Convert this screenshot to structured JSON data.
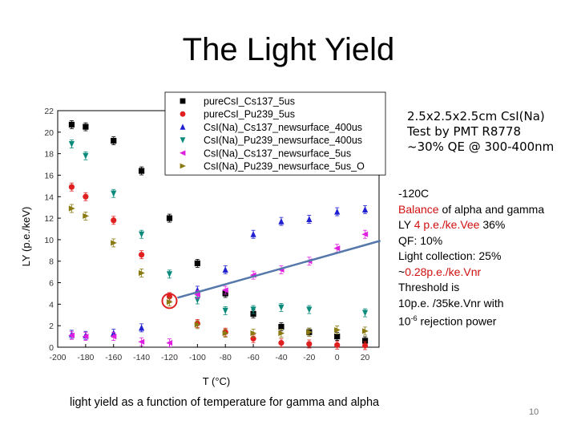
{
  "slide": {
    "title": "The Light Yield",
    "caption": "light yield as a function of temperature for gamma and alpha",
    "page_number": "10"
  },
  "info_box": {
    "lines": [
      "2.5x2.5x2.5cm CsI(Na)",
      "Test by PMT R8778",
      "~30% QE @ 300-400nm"
    ]
  },
  "notes": {
    "temp": "-120C",
    "balance_red": "Balance",
    "balance_rest": " of alpha and gamma",
    "ly_prefix": "LY ",
    "ly_red": "4 p.e./ke.Vee",
    "ly_suffix": " 36%",
    "qf": "QF: 10%",
    "light_collection": "Light collection: 25%",
    "tilde": "~",
    "pe_red": "0.28p.e./ke.Vnr",
    "threshold": "Threshold is",
    "threshold_value": "10p.e. /35ke.Vnr  with",
    "rejection_base": "10",
    "rejection_exp": "-6",
    "rejection_rest": " rejection power"
  },
  "chart_data": {
    "type": "scatter",
    "xlabel": "T (°C)",
    "ylabel": "LY (p.e./keV)",
    "xlim": [
      -200,
      30
    ],
    "ylim": [
      0,
      22
    ],
    "xticks": [
      -200,
      -180,
      -160,
      -140,
      -120,
      -100,
      -80,
      -60,
      -40,
      -20,
      0,
      20
    ],
    "yticks": [
      0,
      2,
      4,
      6,
      8,
      10,
      12,
      14,
      16,
      18,
      20,
      22
    ],
    "legend_position": "top-right",
    "highlight": {
      "x": -120,
      "y": 4.3
    },
    "arrow": {
      "from": {
        "x": -120,
        "y": 4.6
      },
      "to": {
        "x": 8,
        "y": 9.9
      }
    },
    "series": [
      {
        "name": "pureCsI_Cs137_5us",
        "color": "#000000",
        "marker": "square",
        "points": [
          [
            -190,
            20.7
          ],
          [
            -180,
            20.5
          ],
          [
            -160,
            19.2
          ],
          [
            -140,
            16.4
          ],
          [
            -120,
            12.0
          ],
          [
            -100,
            7.8
          ],
          [
            -80,
            5.0
          ],
          [
            -60,
            3.1
          ],
          [
            -40,
            1.9
          ],
          [
            -20,
            1.4
          ],
          [
            0,
            1.0
          ],
          [
            20,
            0.6
          ]
        ]
      },
      {
        "name": "pureCsI_Pu239_5us",
        "color": "#e02020",
        "marker": "circle",
        "points": [
          [
            -190,
            14.9
          ],
          [
            -180,
            14.0
          ],
          [
            -160,
            11.8
          ],
          [
            -140,
            8.6
          ],
          [
            -120,
            4.7
          ],
          [
            -100,
            2.2
          ],
          [
            -80,
            1.4
          ],
          [
            -60,
            0.8
          ],
          [
            -40,
            0.4
          ],
          [
            -20,
            0.3
          ],
          [
            0,
            0.2
          ],
          [
            20,
            0.15
          ]
        ]
      },
      {
        "name": "CsI(Na)_Cs137_newsurface_400us",
        "color": "#2020d0",
        "marker": "triangle-up",
        "points": [
          [
            -190,
            1.2
          ],
          [
            -180,
            1.1
          ],
          [
            -160,
            1.3
          ],
          [
            -140,
            1.8
          ],
          [
            -100,
            5.3
          ],
          [
            -80,
            7.2
          ],
          [
            -60,
            10.5
          ],
          [
            -40,
            11.7
          ],
          [
            -20,
            11.9
          ],
          [
            0,
            12.6
          ],
          [
            20,
            12.8
          ]
        ]
      },
      {
        "name": "CsI(Na)_Pu239_newsurface_400us",
        "color": "#0a8a7a",
        "marker": "triangle-down",
        "points": [
          [
            -190,
            18.9
          ],
          [
            -180,
            17.8
          ],
          [
            -160,
            14.3
          ],
          [
            -140,
            10.5
          ],
          [
            -120,
            6.8
          ],
          [
            -100,
            4.4
          ],
          [
            -80,
            3.4
          ],
          [
            -60,
            3.5
          ],
          [
            -40,
            3.7
          ],
          [
            -20,
            3.5
          ],
          [
            20,
            3.2
          ]
        ]
      },
      {
        "name": "CsI(Na)_Cs137_newsurface_5us",
        "color": "#e020e0",
        "marker": "triangle-left",
        "points": [
          [
            -190,
            1.1
          ],
          [
            -180,
            1.0
          ],
          [
            -160,
            1.0
          ],
          [
            -140,
            0.5
          ],
          [
            -120,
            0.4
          ],
          [
            -100,
            4.9
          ],
          [
            -80,
            5.3
          ],
          [
            -60,
            6.7
          ],
          [
            -40,
            7.2
          ],
          [
            -20,
            8.0
          ],
          [
            0,
            9.2
          ],
          [
            20,
            10.5
          ]
        ]
      },
      {
        "name": "CsI(Na)_Pu239_newsurface_5us_O",
        "color": "#8a7a10",
        "marker": "triangle-right",
        "points": [
          [
            -190,
            12.9
          ],
          [
            -180,
            12.2
          ],
          [
            -160,
            9.7
          ],
          [
            -140,
            6.9
          ],
          [
            -120,
            4.2
          ],
          [
            -100,
            2.1
          ],
          [
            -80,
            1.3
          ],
          [
            -60,
            1.3
          ],
          [
            -40,
            1.3
          ],
          [
            -20,
            1.4
          ],
          [
            0,
            1.6
          ],
          [
            20,
            1.5
          ]
        ]
      }
    ]
  }
}
